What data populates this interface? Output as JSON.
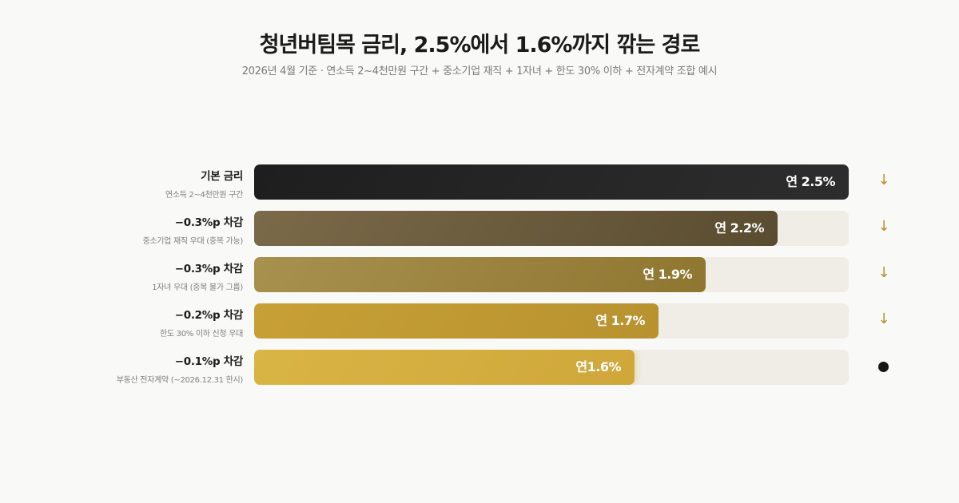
{
  "title": "청년버팀목 금리, 2.5%에서 1.6%까지 깎는 경로",
  "subtitle": "2026년 4월 기준 · 연소득 2~4천만원 구간 + 중소기업 재직 + 1자녀 + 한도 30% 이하 + 전자계약 조합 예시",
  "chart_data": {
    "type": "bar",
    "orientation": "horizontal",
    "xlim": [
      0,
      2.5
    ],
    "categories": [
      "기본 금리",
      "−0.3%p 차감",
      "−0.3%p 차감",
      "−0.2%p 차감",
      "−0.1%p 차감"
    ],
    "sublabels": [
      "연소득 2~4천만원 구간",
      "중소기업 재직 우대 (중복 가능)",
      "1자녀 우대 (중복 불가 그룹)",
      "한도 30% 이하 신청 우대",
      "부동산 전자계약 (~2026.12.31 한시)"
    ],
    "values": [
      2.5,
      2.2,
      1.9,
      1.7,
      1.6
    ],
    "value_labels": [
      "연 2.5%",
      "연 2.2%",
      "연 1.9%",
      "연 1.7%",
      "연1.6%"
    ],
    "markers": [
      "arrow-down",
      "arrow-down",
      "arrow-down",
      "arrow-down",
      "dot"
    ],
    "marker_glyph": "↓",
    "colors": [
      [
        "#1e1e1e",
        "#2d2d2d"
      ],
      [
        "#7a6a4a",
        "#5a4c30"
      ],
      [
        "#a8904f",
        "#8f7630"
      ],
      [
        "#c7a036",
        "#b8922f"
      ],
      [
        "#d9b545",
        "#cfa73a"
      ]
    ],
    "track_color": "#f0ede6",
    "marker_color": "#b8912b"
  }
}
